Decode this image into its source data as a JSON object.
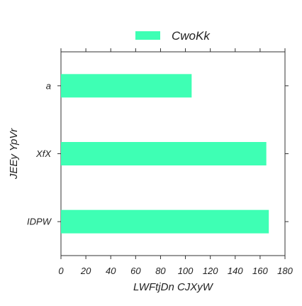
{
  "chart_data": {
    "type": "bar",
    "orientation": "horizontal",
    "categories": [
      "a",
      "XfX",
      "IDPW"
    ],
    "series": [
      {
        "name": "CwoKk",
        "values": [
          105,
          165,
          167
        ],
        "color": "#3effb4"
      }
    ],
    "title": "",
    "xlabel": "LWFtjDn CJXyW",
    "ylabel": "JEEy YpVr",
    "xlim": [
      0,
      180
    ],
    "xticks": [
      0,
      20,
      40,
      60,
      80,
      100,
      120,
      140,
      160,
      180
    ],
    "grid": false,
    "legend_position": "top-center"
  }
}
